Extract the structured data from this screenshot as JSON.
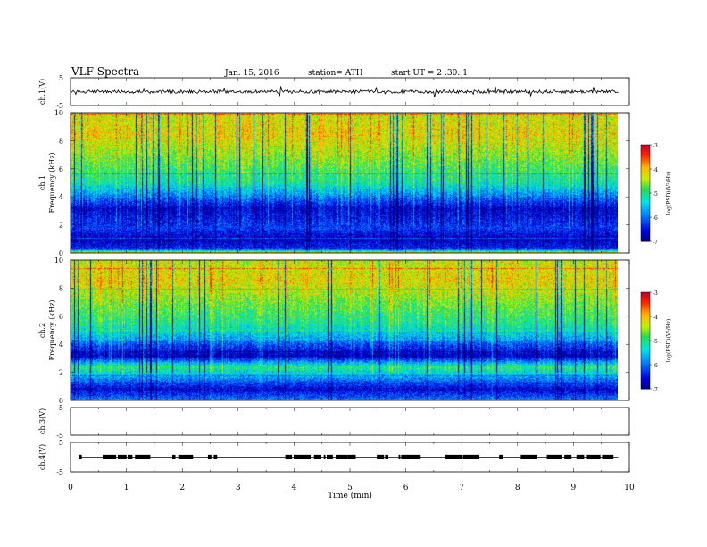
{
  "header": {
    "title": "VLF  Spectra",
    "date": "Jan. 15, 2016",
    "station": "station= ATH",
    "start": "start  UT =   2  :30: 1"
  },
  "chart_data": {
    "type": "multi-panel",
    "xlabel": "Time  (min)",
    "xlim": [
      0,
      10
    ],
    "x_ticks": [
      "0",
      "1",
      "2",
      "3",
      "4",
      "5",
      "6",
      "7",
      "8",
      "9",
      "10"
    ],
    "panels": [
      {
        "kind": "line",
        "ylabel": "ch.1(V)",
        "ylim": [
          -5,
          5
        ],
        "y_ticks": [
          "5",
          "-5"
        ],
        "x_end": 9.8,
        "baseline": 0,
        "noise_amplitude": 0.6,
        "spikes_amplitude": 1.8
      },
      {
        "kind": "heatmap",
        "ylabel": [
          "ch.1",
          "Frequency  (kHz)"
        ],
        "ylim": [
          0,
          10
        ],
        "y_ticks": [
          "0",
          "2",
          "4",
          "6",
          "8",
          "10"
        ],
        "x_end": 9.8,
        "colorbar": {
          "label": "log(PSD)(V²/Hz)",
          "range": [
            -7,
            -3
          ],
          "ticks": [
            "-3",
            "-4",
            "-5",
            "-6",
            "-7"
          ]
        },
        "profile_log_psd": [
          {
            "freq_khz": 0.0,
            "value": -3.6
          },
          {
            "freq_khz": 0.3,
            "value": -6.3
          },
          {
            "freq_khz": 1.0,
            "value": -6.7
          },
          {
            "freq_khz": 1.8,
            "value": -6.2
          },
          {
            "freq_khz": 2.5,
            "value": -6.4
          },
          {
            "freq_khz": 3.2,
            "value": -6.6
          },
          {
            "freq_khz": 4.0,
            "value": -5.9
          },
          {
            "freq_khz": 5.0,
            "value": -5.1
          },
          {
            "freq_khz": 6.0,
            "value": -4.8
          },
          {
            "freq_khz": 7.0,
            "value": -4.5
          },
          {
            "freq_khz": 8.5,
            "value": -4.1
          },
          {
            "freq_khz": 10.0,
            "value": -4.3
          }
        ]
      },
      {
        "kind": "heatmap",
        "ylabel": [
          "ch.2",
          "Frequency  (kHz)"
        ],
        "ylim": [
          0,
          10
        ],
        "y_ticks": [
          "0",
          "2",
          "4",
          "6",
          "8",
          "10"
        ],
        "x_end": 9.8,
        "colorbar": {
          "label": "log(PSD)(V²/Hz)",
          "range": [
            -7,
            -3
          ],
          "ticks": [
            "-3",
            "-4",
            "-5",
            "-6",
            "-7"
          ]
        },
        "profile_log_psd": [
          {
            "freq_khz": 0.0,
            "value": -5.8
          },
          {
            "freq_khz": 0.8,
            "value": -6.6
          },
          {
            "freq_khz": 1.5,
            "value": -5.9
          },
          {
            "freq_khz": 2.4,
            "value": -4.9
          },
          {
            "freq_khz": 3.2,
            "value": -6.7
          },
          {
            "freq_khz": 4.0,
            "value": -6.1
          },
          {
            "freq_khz": 4.6,
            "value": -5.5
          },
          {
            "freq_khz": 5.5,
            "value": -5.0
          },
          {
            "freq_khz": 7.0,
            "value": -4.6
          },
          {
            "freq_khz": 8.5,
            "value": -4.1
          },
          {
            "freq_khz": 10.0,
            "value": -4.3
          }
        ]
      },
      {
        "kind": "line",
        "ylabel": "ch.3(V)",
        "ylim": [
          -5,
          5
        ],
        "y_ticks": [
          "5",
          "-5"
        ],
        "x_end": 9.8,
        "baseline": 4.8,
        "noise_amplitude": 0.0,
        "spikes_amplitude": 0.0
      },
      {
        "kind": "pulses",
        "ylabel": "ch.4(V)",
        "ylim": [
          -5,
          5
        ],
        "y_ticks": [
          "5",
          "-5"
        ],
        "x_end": 9.8,
        "level": 0,
        "pulse_height": 0.8
      }
    ]
  }
}
